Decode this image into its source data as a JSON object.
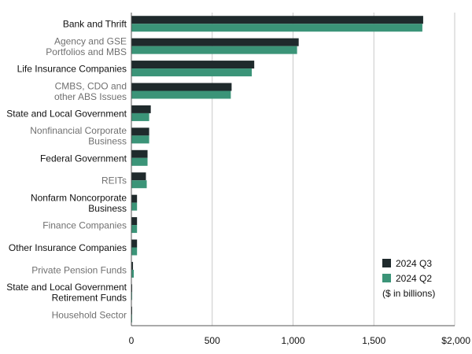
{
  "chart_data": {
    "type": "bar",
    "orientation": "horizontal",
    "categories": [
      [
        "Bank and Thrift"
      ],
      [
        "Agency and GSE",
        "Portfolios and MBS"
      ],
      [
        "Life Insurance Companies"
      ],
      [
        "CMBS, CDO and",
        "other ABS Issues"
      ],
      [
        "State and Local Government"
      ],
      [
        "Nonfinancial Corporate",
        "Business"
      ],
      [
        "Federal Government"
      ],
      [
        "REITs"
      ],
      [
        "Nonfarm Noncorporate",
        "Business"
      ],
      [
        "Finance Companies"
      ],
      [
        "Other Insurance Companies"
      ],
      [
        "Private Pension Funds"
      ],
      [
        "State and Local Government",
        "Retirement Funds"
      ],
      [
        "Household Sector"
      ]
    ],
    "category_style": [
      "dark",
      "gray",
      "dark",
      "gray",
      "dark",
      "gray",
      "dark",
      "gray",
      "dark",
      "gray",
      "dark",
      "gray",
      "dark",
      "gray"
    ],
    "series": [
      {
        "name": "2024 Q3",
        "color": "#1f2a2c",
        "values": [
          1805,
          1035,
          760,
          620,
          120,
          110,
          100,
          90,
          35,
          35,
          35,
          10,
          5,
          2
        ]
      },
      {
        "name": "2024 Q2",
        "color": "#3b9478",
        "values": [
          1800,
          1025,
          745,
          615,
          110,
          110,
          100,
          95,
          35,
          35,
          35,
          15,
          5,
          2
        ]
      }
    ],
    "x_ticks": [
      "0",
      "500",
      "1,000",
      "1,500",
      "$2,000"
    ],
    "xlim": [
      0,
      2000
    ],
    "grid": "vertical",
    "legend": {
      "placement": "bottom-right",
      "note": "($ in billions)"
    }
  }
}
